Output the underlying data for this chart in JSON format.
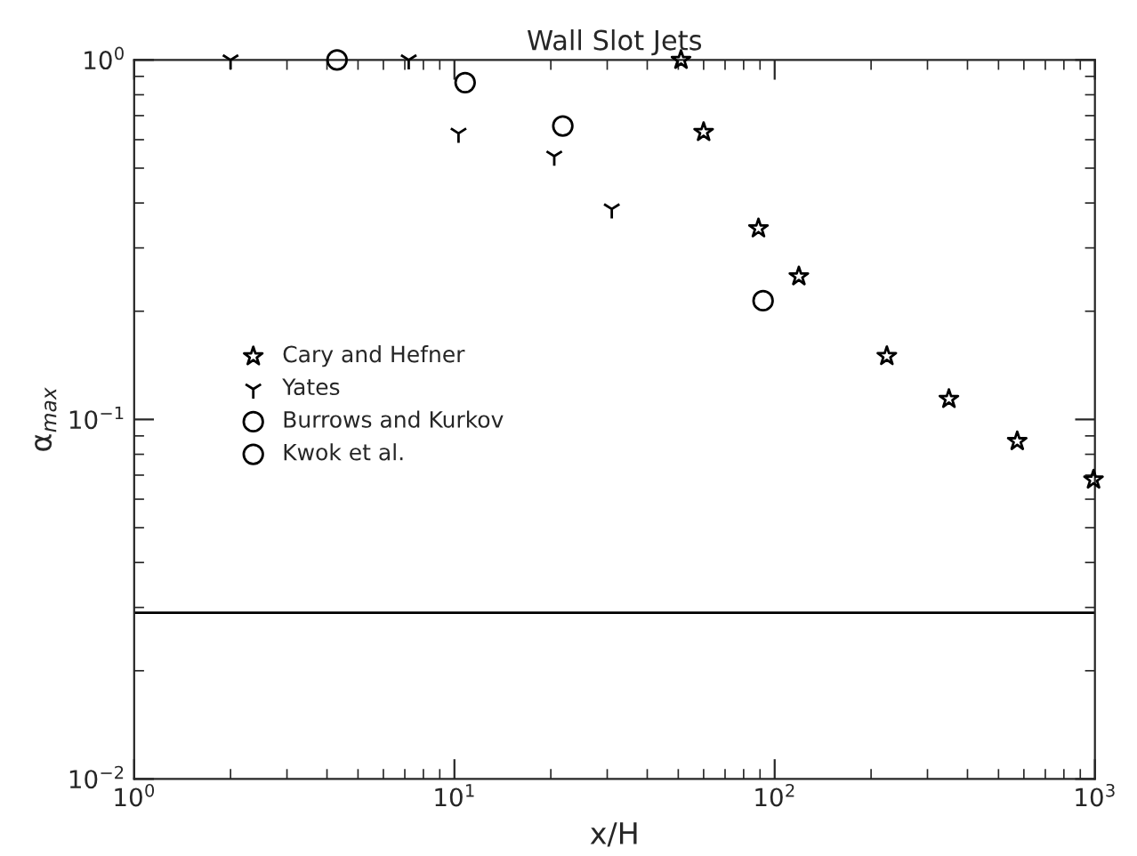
{
  "chart_data": {
    "type": "scatter",
    "title": "Wall Slot Jets",
    "xlabel": "x/H",
    "ylabel": "α$_{max}$",
    "log": "xy",
    "xlim": [
      1,
      1000
    ],
    "ylim": [
      0.01,
      1
    ],
    "xticks": [
      {
        "value": 1,
        "label": "10$^{0}$"
      },
      {
        "value": 10,
        "label": "10$^{1}$"
      },
      {
        "value": 100,
        "label": "10$^{2}$"
      },
      {
        "value": 1000,
        "label": "10$^{3}$"
      }
    ],
    "yticks": [
      {
        "value": 0.01,
        "label": "10$^{−2}$"
      },
      {
        "value": 0.1,
        "label": "10$^{−1}$"
      },
      {
        "value": 1,
        "label": "10$^{0}$"
      }
    ],
    "grid": false,
    "legend": "left",
    "ref_lines": [
      {
        "axis": "y",
        "value": 0.029,
        "color": "#000000",
        "line_style": "solid"
      }
    ],
    "series": [
      {
        "name": "Cary and Hefner",
        "color": "#000000",
        "marker": "star",
        "x": [
          51,
          60,
          89,
          119,
          224,
          350,
          572,
          990
        ],
        "values": [
          1.0,
          0.63,
          0.34,
          0.25,
          0.15,
          0.114,
          0.087,
          0.068
        ]
      },
      {
        "name": "Yates",
        "color": "#000000",
        "marker": "cross",
        "x": [
          2.0,
          7.2,
          10.3,
          20.5,
          31
        ],
        "values": [
          1.0,
          1.0,
          0.625,
          0.54,
          0.385
        ]
      },
      {
        "name": "Burrows and Kurkov",
        "color": "#000000",
        "marker": "circle",
        "x": [
          92
        ],
        "values": [
          0.214
        ]
      },
      {
        "name": "Kwok et al.",
        "color": "#000000",
        "marker": "circle",
        "x": [
          4.3,
          10.8,
          21.8
        ],
        "values": [
          1.0,
          0.865,
          0.655
        ]
      }
    ]
  }
}
